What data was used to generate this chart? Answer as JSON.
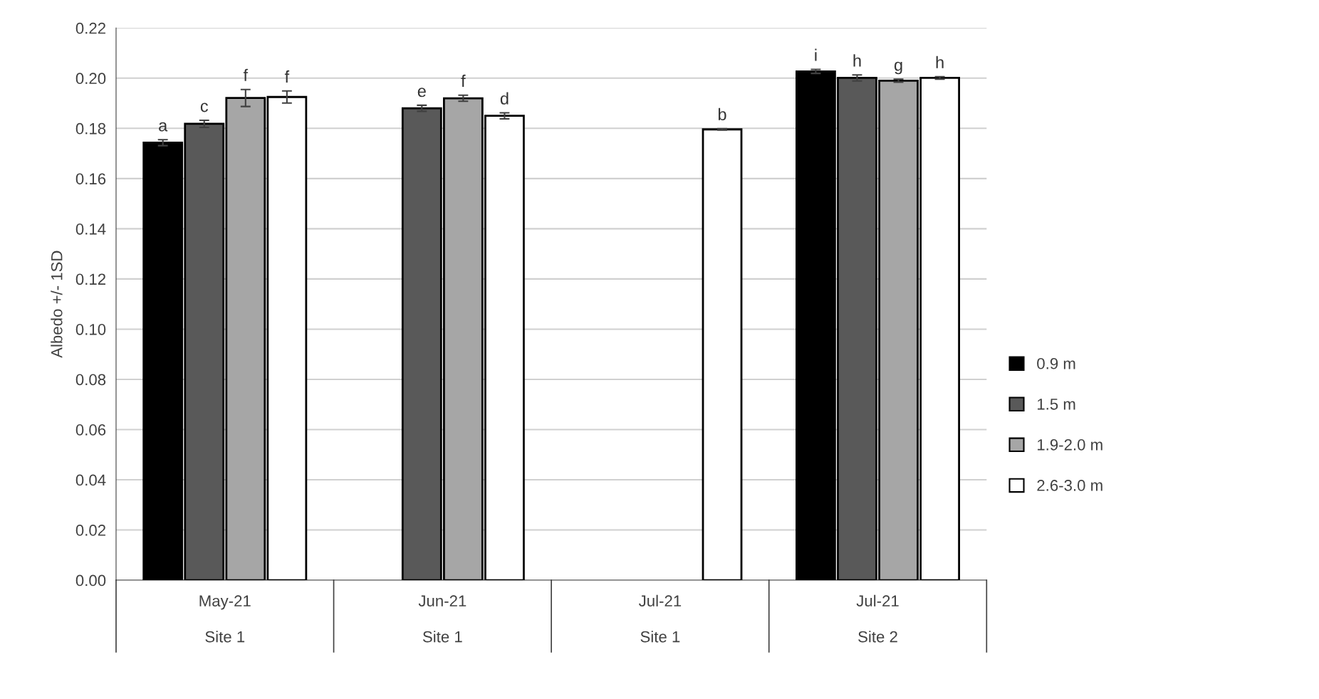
{
  "chart_data": {
    "type": "bar",
    "ylabel": "Albedo +/- 1SD",
    "categories": [
      "May-21\nSite 1",
      "Jun-21\nSite 1",
      "Jul-21\nSite 1",
      "Jul-21\nSite 2"
    ],
    "series": [
      {
        "name": "0.9 m",
        "color": "#000000",
        "values": [
          0.1743,
          null,
          null,
          0.2027
        ],
        "errors": [
          0.0012,
          null,
          null,
          0.0008
        ],
        "value_labels": [
          "a",
          null,
          null,
          "i"
        ]
      },
      {
        "name": "1.5 m",
        "color": "#595959",
        "values": [
          0.1818,
          0.188,
          null,
          0.2001
        ],
        "errors": [
          0.0014,
          0.0012,
          null,
          0.0012
        ],
        "value_labels": [
          "c",
          "e",
          null,
          "h"
        ]
      },
      {
        "name": "1.9-2.0 m",
        "color": "#a6a6a6",
        "values": [
          0.1921,
          0.192,
          null,
          0.199
        ],
        "errors": [
          0.0034,
          0.0012,
          null,
          0.0006
        ],
        "value_labels": [
          "f",
          "f",
          null,
          "g"
        ]
      },
      {
        "name": "2.6-3.0 m",
        "color": "#ffffff",
        "values": [
          0.1925,
          0.185,
          0.1796,
          0.2001
        ],
        "errors": [
          0.0024,
          0.0012,
          0.0003,
          0.0005
        ],
        "value_labels": [
          "f",
          "d",
          "b",
          "h"
        ]
      }
    ],
    "ylim": [
      0,
      0.22
    ],
    "yticks": [
      {
        "value": 0,
        "label": "0.00"
      },
      {
        "value": 0.02,
        "label": "0.02"
      },
      {
        "value": 0.04,
        "label": "0.04"
      },
      {
        "value": 0.06,
        "label": "0.06"
      },
      {
        "value": 0.08,
        "label": "0.08"
      },
      {
        "value": 0.1,
        "label": "0.10"
      },
      {
        "value": 0.12,
        "label": "0.12"
      },
      {
        "value": 0.14,
        "label": "0.14"
      },
      {
        "value": 0.16,
        "label": "0.16"
      },
      {
        "value": 0.18,
        "label": "0.18"
      },
      {
        "value": 0.2,
        "label": "0.20"
      },
      {
        "value": 0.22,
        "label": "0.22"
      }
    ],
    "grid": "y",
    "legend": "right"
  }
}
